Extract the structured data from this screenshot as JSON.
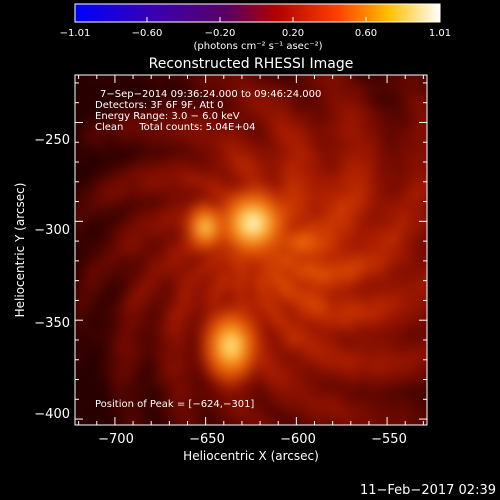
{
  "chart_data": {
    "type": "heatmap",
    "title": "Reconstructed RHESSI Image",
    "xlabel": "Heliocentric X (arcsec)",
    "ylabel": "Heliocentric Y (arcsec)",
    "xlim": [
      -722,
      -528
    ],
    "ylim": [
      -403,
      -226
    ],
    "xticks": [
      -700,
      -650,
      -600,
      -550
    ],
    "xtick_labels": [
      "−700",
      "−650",
      "−600",
      "−550"
    ],
    "yticks": [
      -250,
      -300,
      -350,
      -400
    ],
    "ytick_labels": [
      "−250",
      "−300",
      "−350",
      "−400"
    ],
    "colorbar": {
      "min": -1.01,
      "max": 1.01,
      "tick_values": [
        -1.01,
        -0.6,
        -0.2,
        0.2,
        0.6,
        1.01
      ],
      "tick_labels": [
        "−1.01",
        "−0.60",
        "−0.20",
        "0.20",
        "0.60",
        "1.01"
      ],
      "units": "(photons cm⁻² s⁻¹ asec⁻²)"
    },
    "info": [
      "7−Sep−2014 09:36:24.000 to 09:46:24.000",
      "Detectors: 3F 6F 9F, Att 0",
      "Energy Range: 3.0 − 6.0 keV",
      "Clean     Total counts: 5.04E+04"
    ],
    "peak_label": "Position of Peak = [−624,−301]",
    "sources": [
      {
        "x": -624,
        "y": -301,
        "intensity": 1.0
      },
      {
        "x": -650,
        "y": -303,
        "intensity": 0.72
      },
      {
        "x": -636,
        "y": -363,
        "intensity": 0.82
      }
    ]
  },
  "footer": {
    "timestamp": "11−Feb−2017 02:39"
  }
}
